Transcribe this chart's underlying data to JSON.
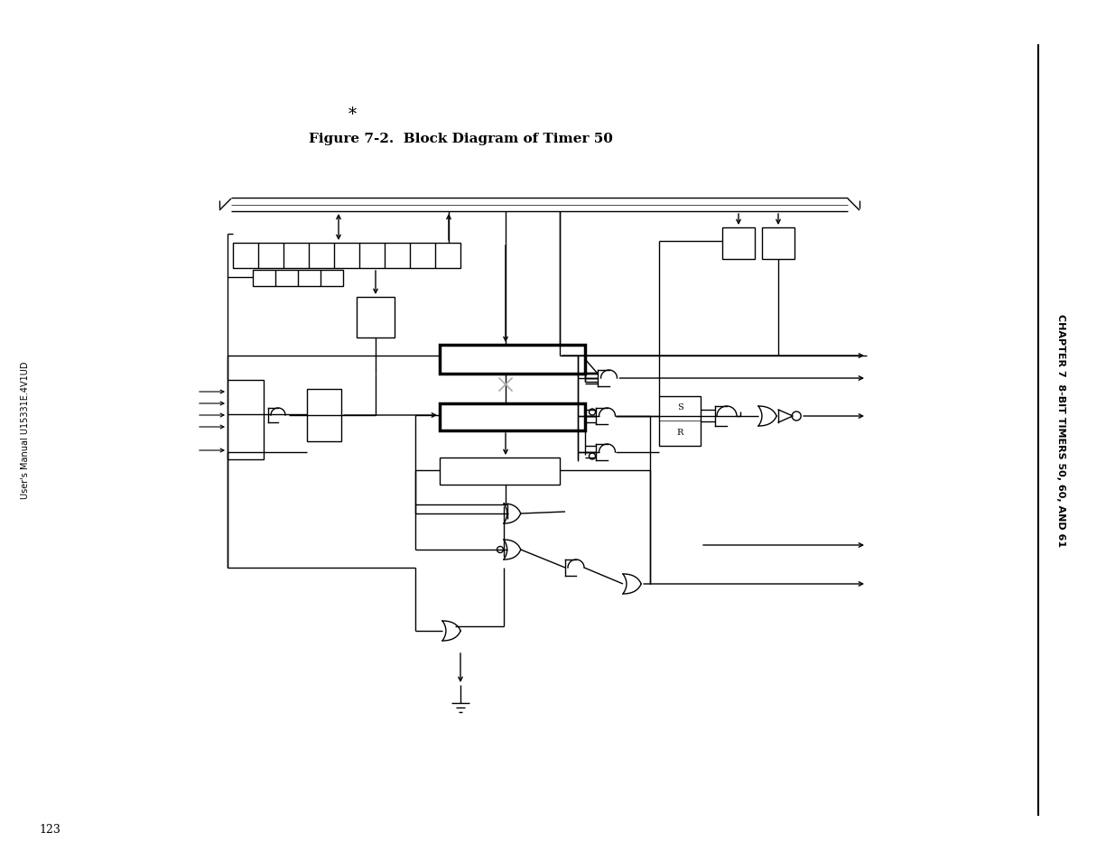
{
  "title": "Figure 7-2.  Block Diagram of Timer 50",
  "right_text": "CHAPTER 7  8-BIT TIMERS 50, 60, AND 61",
  "left_text": "User's Manual U15331E.4V1UD",
  "page_num": "123",
  "bg": "#ffffff"
}
